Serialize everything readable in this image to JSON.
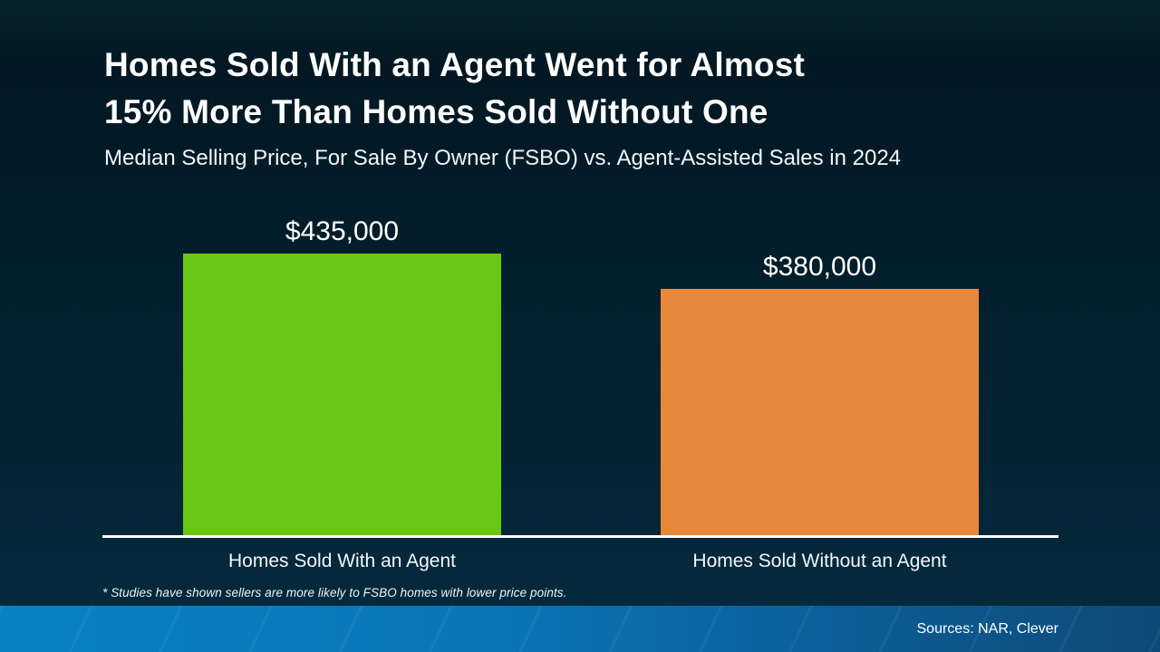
{
  "title": {
    "line1": "Homes Sold With an Agent Went for Almost",
    "line2": "15% More Than Homes Sold Without One"
  },
  "subtitle": "Median Selling Price, For Sale By Owner (FSBO) vs. Agent-Assisted Sales in 2024",
  "chart_data": {
    "type": "bar",
    "categories": [
      "Homes Sold With an Agent",
      "Homes Sold Without an Agent"
    ],
    "values": [
      435000,
      380000
    ],
    "value_labels": [
      "$435,000",
      "$380,000"
    ],
    "colors": [
      "#6ac515",
      "#e8883a"
    ],
    "title": "Median Selling Price, For Sale By Owner (FSBO) vs. Agent-Assisted Sales in 2024",
    "xlabel": "",
    "ylabel": "",
    "ylim": [
      0,
      435000
    ],
    "grid": false,
    "legend": "none",
    "baseline_color": "#ffffff"
  },
  "footnote": "* Studies have shown sellers are more likely to FSBO homes with lower price points.",
  "footer": {
    "sources": "Sources: NAR, Clever",
    "band_gradient_left": "#0a81c4",
    "band_gradient_right": "#0e4a77"
  },
  "background": {
    "top": "#031823",
    "bottom": "#062b3f"
  }
}
